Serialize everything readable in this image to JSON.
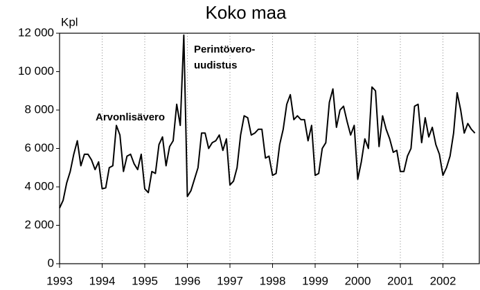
{
  "chart_data": {
    "type": "line",
    "title": "Koko maa",
    "y_label": "Kpl",
    "annotations": [
      "Arvonlisävero",
      "Perintövero-",
      "uudistus"
    ],
    "categories": [
      "1993",
      null,
      null,
      null,
      null,
      null,
      null,
      null,
      null,
      null,
      null,
      null,
      "1994",
      null,
      null,
      null,
      null,
      null,
      null,
      null,
      null,
      null,
      null,
      null,
      "1995",
      null,
      null,
      null,
      null,
      null,
      null,
      null,
      null,
      null,
      null,
      null,
      "1996",
      null,
      null,
      null,
      null,
      null,
      null,
      null,
      null,
      null,
      null,
      null,
      "1997",
      null,
      null,
      null,
      null,
      null,
      null,
      null,
      null,
      null,
      null,
      null,
      "1998",
      null,
      null,
      null,
      null,
      null,
      null,
      null,
      null,
      null,
      null,
      null,
      "1999",
      null,
      null,
      null,
      null,
      null,
      null,
      null,
      null,
      null,
      null,
      null,
      "2000",
      null,
      null,
      null,
      null,
      null,
      null,
      null,
      null,
      null,
      null,
      null,
      "2001",
      null,
      null,
      null,
      null,
      null,
      null,
      null,
      null,
      null,
      null,
      null,
      "2002",
      null,
      null,
      null,
      null,
      null,
      null,
      null,
      null,
      null
    ],
    "series": [
      {
        "name": "Kpl",
        "color": "#000000",
        "values": [
          2900,
          3300,
          4200,
          4800,
          5700,
          6400,
          5100,
          5700,
          5700,
          5400,
          4900,
          5300,
          3900,
          3950,
          5000,
          5100,
          7200,
          6700,
          4800,
          5600,
          5700,
          5200,
          4900,
          5700,
          3900,
          3700,
          4800,
          4700,
          6200,
          6600,
          5100,
          6100,
          6400,
          8300,
          7200,
          11900,
          3500,
          3800,
          4400,
          5000,
          6800,
          6800,
          6000,
          6300,
          6400,
          6700,
          5900,
          6500,
          4100,
          4300,
          5000,
          6700,
          7700,
          7600,
          6700,
          6800,
          7000,
          7000,
          5500,
          5600,
          4600,
          4700,
          6200,
          7000,
          8300,
          8800,
          7500,
          7700,
          7500,
          7500,
          6400,
          7200,
          4600,
          4700,
          6000,
          6300,
          8400,
          9100,
          7100,
          8000,
          8200,
          7400,
          6700,
          7200,
          4400,
          5300,
          6500,
          6000,
          9200,
          9000,
          6100,
          7700,
          7000,
          6500,
          5800,
          5900,
          4800,
          4800,
          5600,
          6000,
          8200,
          8300,
          6300,
          7600,
          6600,
          7100,
          6200,
          5700,
          4600,
          5000,
          5600,
          6800,
          8900,
          8000,
          6800,
          7300,
          7000,
          6800
        ]
      }
    ],
    "ylim": [
      0,
      12000
    ],
    "yticks": [
      0,
      {
        "value": 2000,
        "label": "2 000"
      },
      {
        "value": 4000,
        "label": "4 000"
      },
      {
        "value": 6000,
        "label": "6 000"
      },
      {
        "value": 8000,
        "label": "8 000"
      },
      {
        "value": 10000,
        "label": "10 000"
      },
      {
        "value": 12000,
        "label": "12 000"
      }
    ],
    "grid": true
  }
}
